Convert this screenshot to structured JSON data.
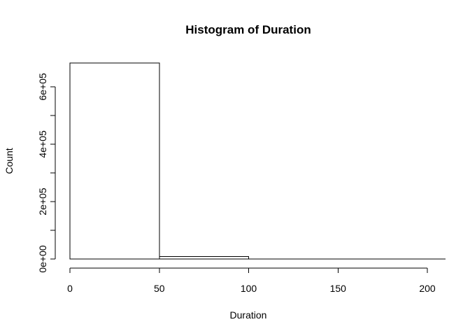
{
  "chart_data": {
    "type": "bar",
    "subtype": "histogram",
    "title": "Histogram of Duration",
    "xlabel": "Duration",
    "ylabel": "Count",
    "bins": [
      {
        "start": 0,
        "end": 50,
        "count": 683000
      },
      {
        "start": 50,
        "end": 100,
        "count": 8000
      },
      {
        "start": 100,
        "end": 150,
        "count": 400
      },
      {
        "start": 150,
        "end": 200,
        "count": 100
      },
      {
        "start": 200,
        "end": 210,
        "count": 20
      }
    ],
    "xlim": [
      0,
      210
    ],
    "ylim": [
      0,
      690000
    ],
    "x_ticks": [
      {
        "value": 0,
        "label": "0"
      },
      {
        "value": 50,
        "label": "50"
      },
      {
        "value": 100,
        "label": "100"
      },
      {
        "value": 150,
        "label": "150"
      },
      {
        "value": 200,
        "label": "200"
      }
    ],
    "y_ticks": [
      {
        "value": 0,
        "label": "0e+00"
      },
      {
        "value": 100000,
        "label": ""
      },
      {
        "value": 200000,
        "label": "2e+05"
      },
      {
        "value": 300000,
        "label": ""
      },
      {
        "value": 400000,
        "label": "4e+05"
      },
      {
        "value": 500000,
        "label": ""
      },
      {
        "value": 600000,
        "label": "6e+05"
      }
    ],
    "grid": false,
    "legend": "none",
    "bar_fill": "#ffffff",
    "bar_stroke": "#000000"
  }
}
